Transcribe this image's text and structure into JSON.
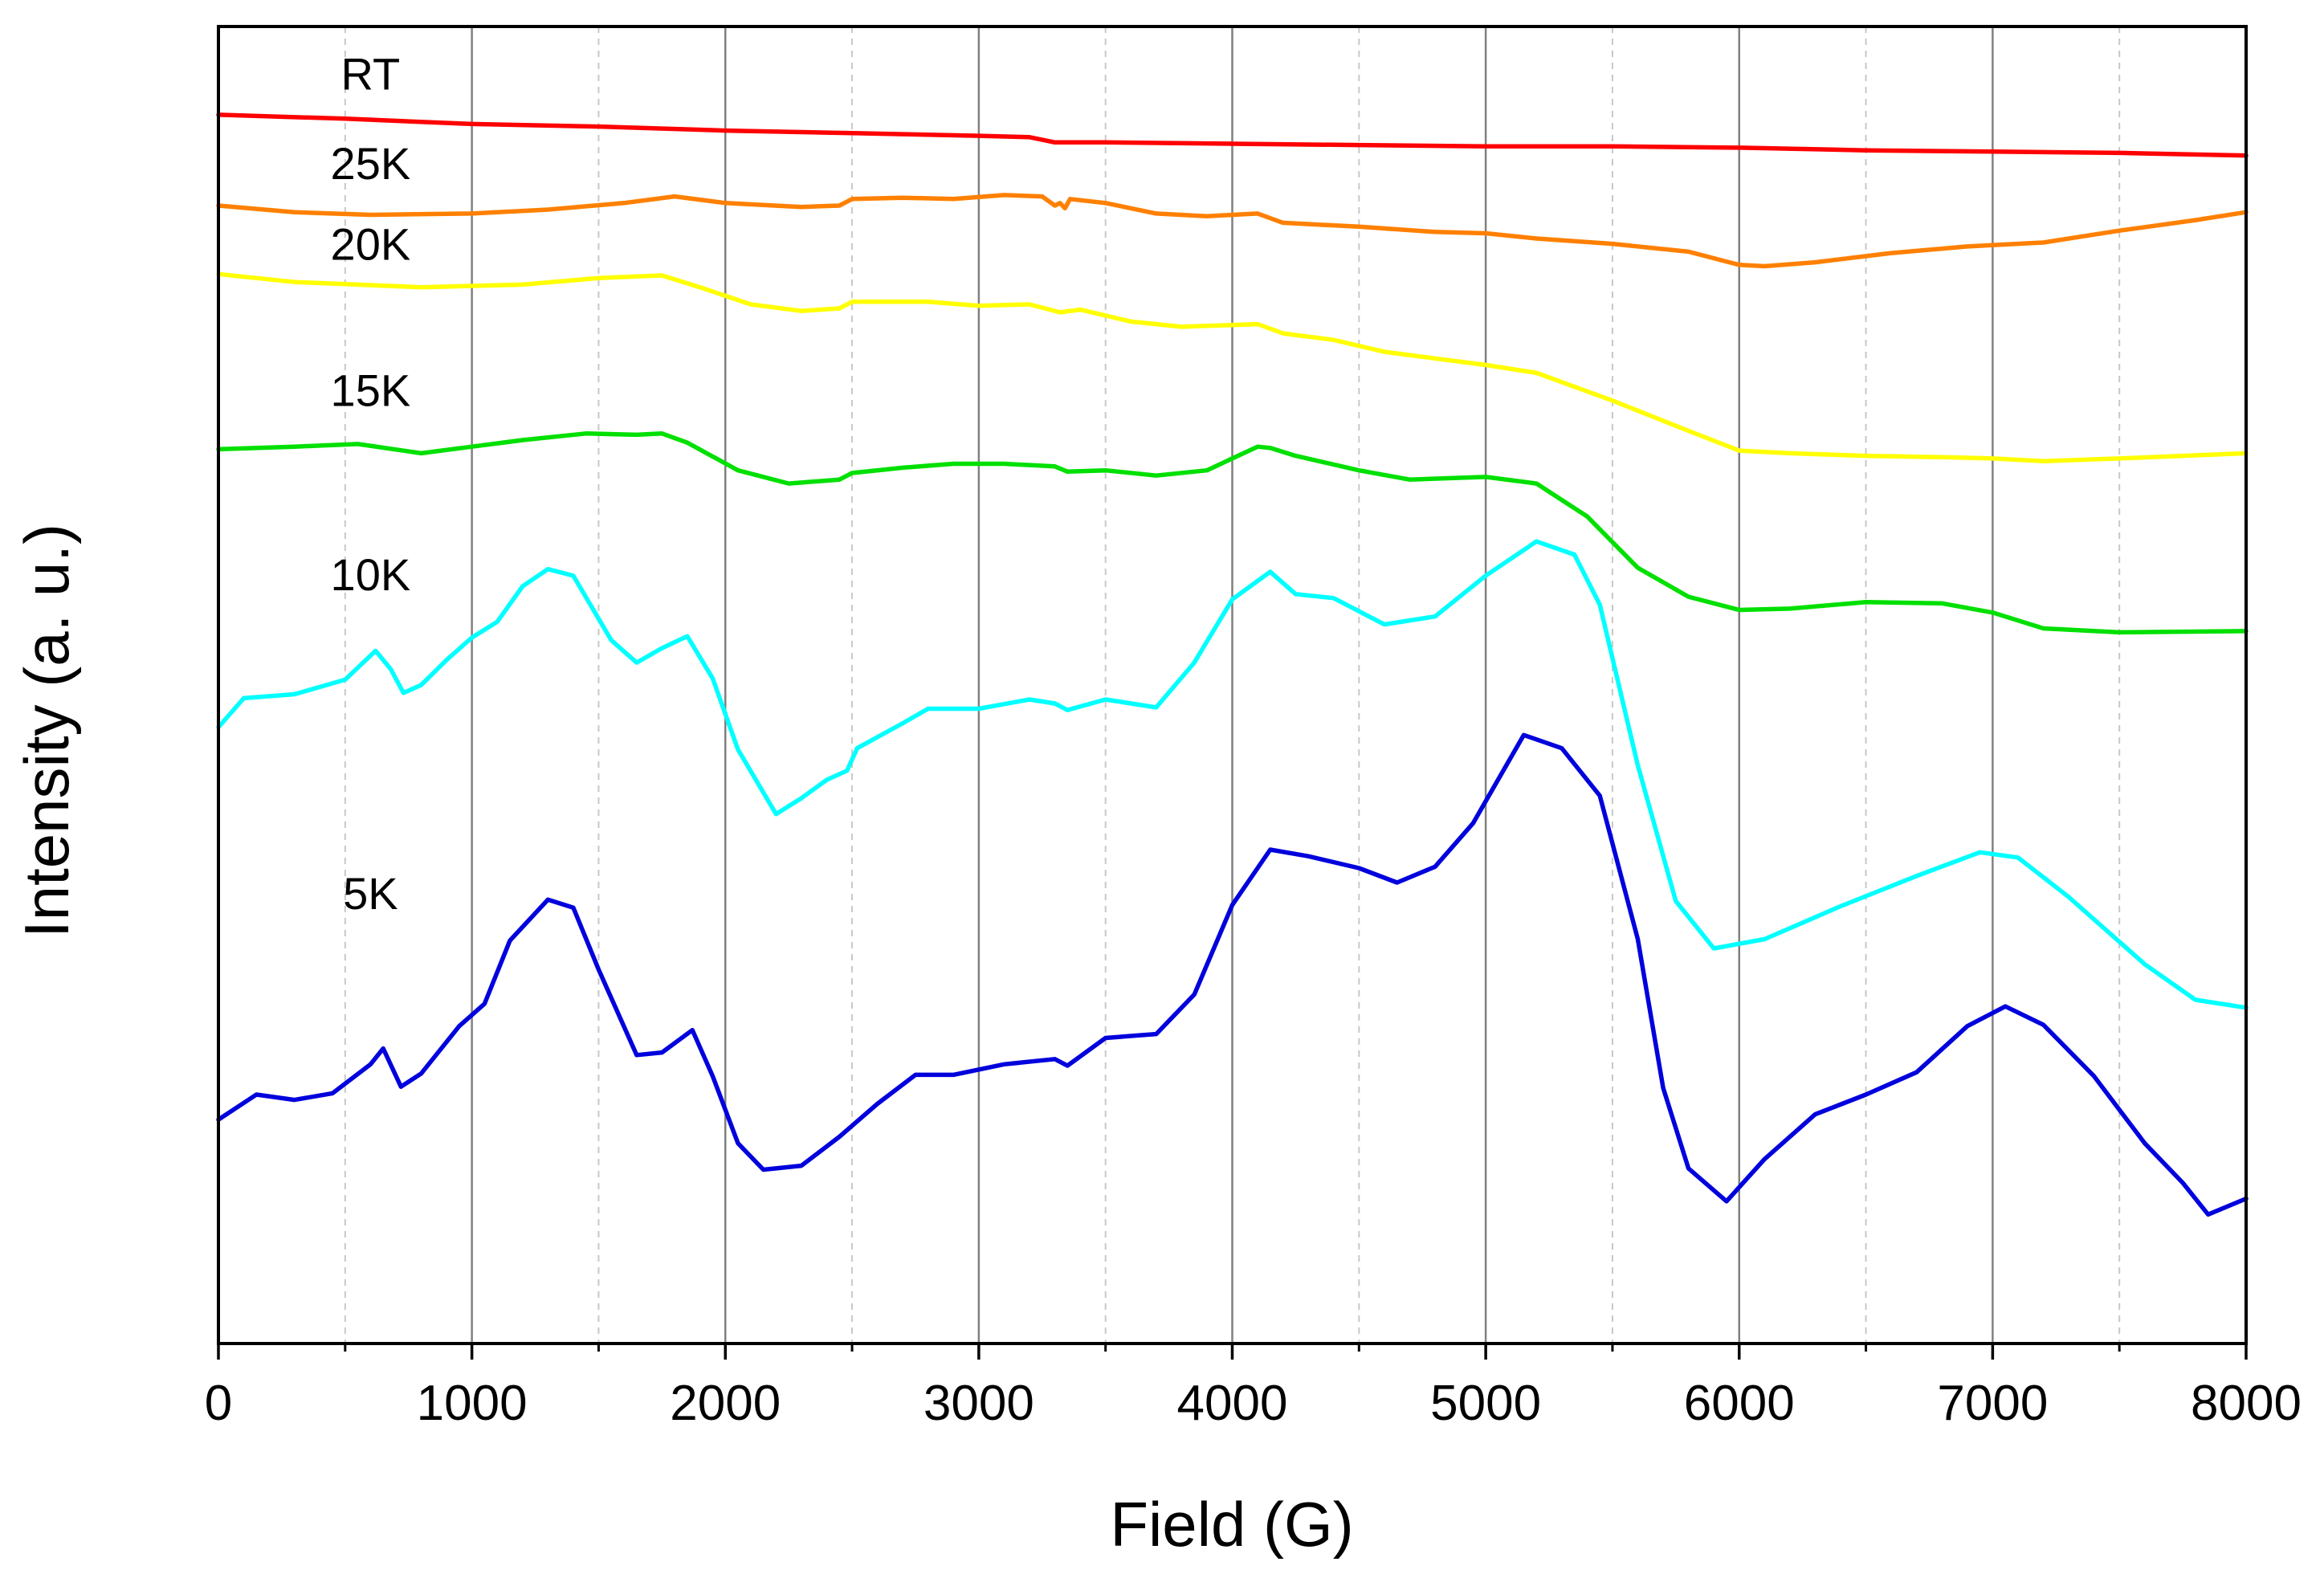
{
  "chart_data": {
    "type": "line",
    "title": "",
    "xlabel": "Field (G)",
    "ylabel": "Intensity (a. u.)",
    "xlim": [
      0,
      8000
    ],
    "ylim": [
      0,
      100
    ],
    "xticks": [
      0,
      1000,
      2000,
      3000,
      4000,
      5000,
      6000,
      7000,
      8000
    ],
    "xtick_labels": [
      "0",
      "1000",
      "2000",
      "3000",
      "4000",
      "5000",
      "6000",
      "7000",
      "8000"
    ],
    "grid_major_x": true,
    "grid_minor_x": true,
    "series": [
      {
        "name": "RT",
        "color": "#ff0000",
        "label": "RT",
        "label_at": [
          600,
          95.2
        ],
        "points": [
          [
            0,
            93.3
          ],
          [
            500,
            93.0
          ],
          [
            1000,
            92.6
          ],
          [
            1500,
            92.4
          ],
          [
            2000,
            92.1
          ],
          [
            2500,
            91.9
          ],
          [
            3000,
            91.7
          ],
          [
            3200,
            91.6
          ],
          [
            3300,
            91.2
          ],
          [
            3500,
            91.2
          ],
          [
            4000,
            91.1
          ],
          [
            4500,
            91.0
          ],
          [
            5000,
            90.9
          ],
          [
            5500,
            90.9
          ],
          [
            6000,
            90.8
          ],
          [
            6500,
            90.6
          ],
          [
            7000,
            90.5
          ],
          [
            7500,
            90.4
          ],
          [
            8000,
            90.2
          ]
        ]
      },
      {
        "name": "25K",
        "color": "#ff8000",
        "label": "25K",
        "label_at": [
          600,
          88.4
        ],
        "points": [
          [
            0,
            86.4
          ],
          [
            300,
            85.9
          ],
          [
            600,
            85.7
          ],
          [
            1000,
            85.8
          ],
          [
            1300,
            86.1
          ],
          [
            1600,
            86.6
          ],
          [
            1800,
            87.1
          ],
          [
            2000,
            86.6
          ],
          [
            2300,
            86.3
          ],
          [
            2450,
            86.4
          ],
          [
            2500,
            86.9
          ],
          [
            2700,
            87.0
          ],
          [
            2900,
            86.9
          ],
          [
            3100,
            87.2
          ],
          [
            3250,
            87.1
          ],
          [
            3300,
            86.4
          ],
          [
            3320,
            86.6
          ],
          [
            3340,
            86.2
          ],
          [
            3360,
            86.9
          ],
          [
            3500,
            86.6
          ],
          [
            3700,
            85.8
          ],
          [
            3900,
            85.6
          ],
          [
            4100,
            85.8
          ],
          [
            4200,
            85.1
          ],
          [
            4500,
            84.8
          ],
          [
            4800,
            84.4
          ],
          [
            5000,
            84.3
          ],
          [
            5200,
            83.9
          ],
          [
            5500,
            83.5
          ],
          [
            5800,
            82.9
          ],
          [
            6000,
            81.9
          ],
          [
            6100,
            81.8
          ],
          [
            6300,
            82.1
          ],
          [
            6600,
            82.8
          ],
          [
            6900,
            83.3
          ],
          [
            7200,
            83.6
          ],
          [
            7500,
            84.5
          ],
          [
            7800,
            85.3
          ],
          [
            8000,
            85.9
          ]
        ]
      },
      {
        "name": "20K",
        "color": "#ffff00",
        "label": "20K",
        "label_at": [
          600,
          82.3
        ],
        "points": [
          [
            0,
            81.2
          ],
          [
            300,
            80.6
          ],
          [
            800,
            80.2
          ],
          [
            1200,
            80.4
          ],
          [
            1500,
            80.9
          ],
          [
            1750,
            81.1
          ],
          [
            1900,
            80.2
          ],
          [
            2100,
            78.9
          ],
          [
            2300,
            78.4
          ],
          [
            2450,
            78.6
          ],
          [
            2500,
            79.1
          ],
          [
            2800,
            79.1
          ],
          [
            3000,
            78.8
          ],
          [
            3200,
            78.9
          ],
          [
            3320,
            78.3
          ],
          [
            3400,
            78.5
          ],
          [
            3600,
            77.6
          ],
          [
            3800,
            77.2
          ],
          [
            4100,
            77.4
          ],
          [
            4200,
            76.7
          ],
          [
            4400,
            76.2
          ],
          [
            4600,
            75.3
          ],
          [
            4800,
            74.8
          ],
          [
            5000,
            74.3
          ],
          [
            5200,
            73.7
          ],
          [
            5500,
            71.6
          ],
          [
            5800,
            69.3
          ],
          [
            6000,
            67.8
          ],
          [
            6200,
            67.6
          ],
          [
            6500,
            67.4
          ],
          [
            6800,
            67.3
          ],
          [
            7000,
            67.2
          ],
          [
            7200,
            67.0
          ],
          [
            7500,
            67.2
          ],
          [
            8000,
            67.6
          ]
        ]
      },
      {
        "name": "15K",
        "color": "#00e000",
        "label": "15K",
        "label_at": [
          600,
          71.2
        ],
        "points": [
          [
            0,
            67.9
          ],
          [
            300,
            68.1
          ],
          [
            550,
            68.3
          ],
          [
            800,
            67.6
          ],
          [
            1000,
            68.1
          ],
          [
            1200,
            68.6
          ],
          [
            1450,
            69.1
          ],
          [
            1650,
            69.0
          ],
          [
            1750,
            69.1
          ],
          [
            1850,
            68.4
          ],
          [
            2050,
            66.3
          ],
          [
            2250,
            65.3
          ],
          [
            2450,
            65.6
          ],
          [
            2500,
            66.1
          ],
          [
            2700,
            66.5
          ],
          [
            2900,
            66.8
          ],
          [
            3100,
            66.8
          ],
          [
            3300,
            66.6
          ],
          [
            3350,
            66.2
          ],
          [
            3500,
            66.3
          ],
          [
            3700,
            65.9
          ],
          [
            3900,
            66.3
          ],
          [
            4000,
            67.2
          ],
          [
            4100,
            68.1
          ],
          [
            4150,
            68.0
          ],
          [
            4250,
            67.4
          ],
          [
            4500,
            66.3
          ],
          [
            4700,
            65.6
          ],
          [
            5000,
            65.8
          ],
          [
            5200,
            65.3
          ],
          [
            5400,
            62.8
          ],
          [
            5600,
            58.9
          ],
          [
            5800,
            56.7
          ],
          [
            6000,
            55.7
          ],
          [
            6200,
            55.8
          ],
          [
            6500,
            56.3
          ],
          [
            6800,
            56.2
          ],
          [
            7000,
            55.5
          ],
          [
            7200,
            54.3
          ],
          [
            7500,
            54.0
          ],
          [
            8000,
            54.1
          ]
        ]
      },
      {
        "name": "10K",
        "color": "#00ffff",
        "label": "10K",
        "label_at": [
          600,
          57.2
        ],
        "points": [
          [
            0,
            46.8
          ],
          [
            100,
            49.0
          ],
          [
            300,
            49.3
          ],
          [
            500,
            50.4
          ],
          [
            620,
            52.6
          ],
          [
            680,
            51.2
          ],
          [
            730,
            49.4
          ],
          [
            800,
            50.0
          ],
          [
            900,
            51.9
          ],
          [
            1000,
            53.6
          ],
          [
            1100,
            54.8
          ],
          [
            1200,
            57.5
          ],
          [
            1300,
            58.8
          ],
          [
            1400,
            58.3
          ],
          [
            1550,
            53.4
          ],
          [
            1650,
            51.7
          ],
          [
            1750,
            52.8
          ],
          [
            1850,
            53.7
          ],
          [
            1950,
            50.5
          ],
          [
            2050,
            45.1
          ],
          [
            2200,
            40.2
          ],
          [
            2300,
            41.4
          ],
          [
            2400,
            42.8
          ],
          [
            2480,
            43.5
          ],
          [
            2520,
            45.2
          ],
          [
            2700,
            47.1
          ],
          [
            2800,
            48.2
          ],
          [
            3000,
            48.2
          ],
          [
            3200,
            48.9
          ],
          [
            3300,
            48.6
          ],
          [
            3350,
            48.1
          ],
          [
            3500,
            48.9
          ],
          [
            3700,
            48.3
          ],
          [
            3850,
            51.7
          ],
          [
            4000,
            56.5
          ],
          [
            4150,
            58.6
          ],
          [
            4250,
            56.9
          ],
          [
            4400,
            56.6
          ],
          [
            4600,
            54.6
          ],
          [
            4800,
            55.2
          ],
          [
            5000,
            58.3
          ],
          [
            5200,
            60.9
          ],
          [
            5350,
            59.9
          ],
          [
            5450,
            56.1
          ],
          [
            5600,
            43.9
          ],
          [
            5750,
            33.6
          ],
          [
            5900,
            30.0
          ],
          [
            6100,
            30.7
          ],
          [
            6400,
            33.2
          ],
          [
            6700,
            35.5
          ],
          [
            6950,
            37.3
          ],
          [
            7100,
            36.9
          ],
          [
            7300,
            33.9
          ],
          [
            7600,
            28.8
          ],
          [
            7800,
            26.1
          ],
          [
            8000,
            25.5
          ]
        ]
      },
      {
        "name": "5K",
        "color": "#0000dd",
        "label": "5K",
        "label_at": [
          600,
          33.0
        ],
        "points": [
          [
            0,
            17.0
          ],
          [
            150,
            18.9
          ],
          [
            300,
            18.5
          ],
          [
            450,
            19.0
          ],
          [
            600,
            21.2
          ],
          [
            650,
            22.4
          ],
          [
            720,
            19.5
          ],
          [
            800,
            20.5
          ],
          [
            950,
            24.1
          ],
          [
            1050,
            25.8
          ],
          [
            1150,
            30.6
          ],
          [
            1300,
            33.7
          ],
          [
            1400,
            33.1
          ],
          [
            1500,
            28.4
          ],
          [
            1650,
            21.9
          ],
          [
            1750,
            22.1
          ],
          [
            1870,
            23.8
          ],
          [
            1950,
            20.3
          ],
          [
            2050,
            15.2
          ],
          [
            2150,
            13.2
          ],
          [
            2300,
            13.5
          ],
          [
            2450,
            15.7
          ],
          [
            2600,
            18.2
          ],
          [
            2750,
            20.4
          ],
          [
            2900,
            20.4
          ],
          [
            3100,
            21.2
          ],
          [
            3300,
            21.6
          ],
          [
            3350,
            21.1
          ],
          [
            3500,
            23.2
          ],
          [
            3700,
            23.5
          ],
          [
            3850,
            26.5
          ],
          [
            4000,
            33.3
          ],
          [
            4150,
            37.5
          ],
          [
            4300,
            37.0
          ],
          [
            4500,
            36.1
          ],
          [
            4650,
            35.0
          ],
          [
            4800,
            36.2
          ],
          [
            4950,
            39.5
          ],
          [
            5150,
            46.2
          ],
          [
            5300,
            45.2
          ],
          [
            5450,
            41.6
          ],
          [
            5600,
            30.7
          ],
          [
            5700,
            19.4
          ],
          [
            5800,
            13.3
          ],
          [
            5950,
            10.8
          ],
          [
            6100,
            14.0
          ],
          [
            6300,
            17.4
          ],
          [
            6500,
            18.9
          ],
          [
            6700,
            20.6
          ],
          [
            6900,
            24.1
          ],
          [
            7050,
            25.6
          ],
          [
            7200,
            24.2
          ],
          [
            7400,
            20.3
          ],
          [
            7600,
            15.2
          ],
          [
            7750,
            12.2
          ],
          [
            7850,
            9.8
          ],
          [
            8000,
            11.0
          ]
        ]
      }
    ]
  }
}
